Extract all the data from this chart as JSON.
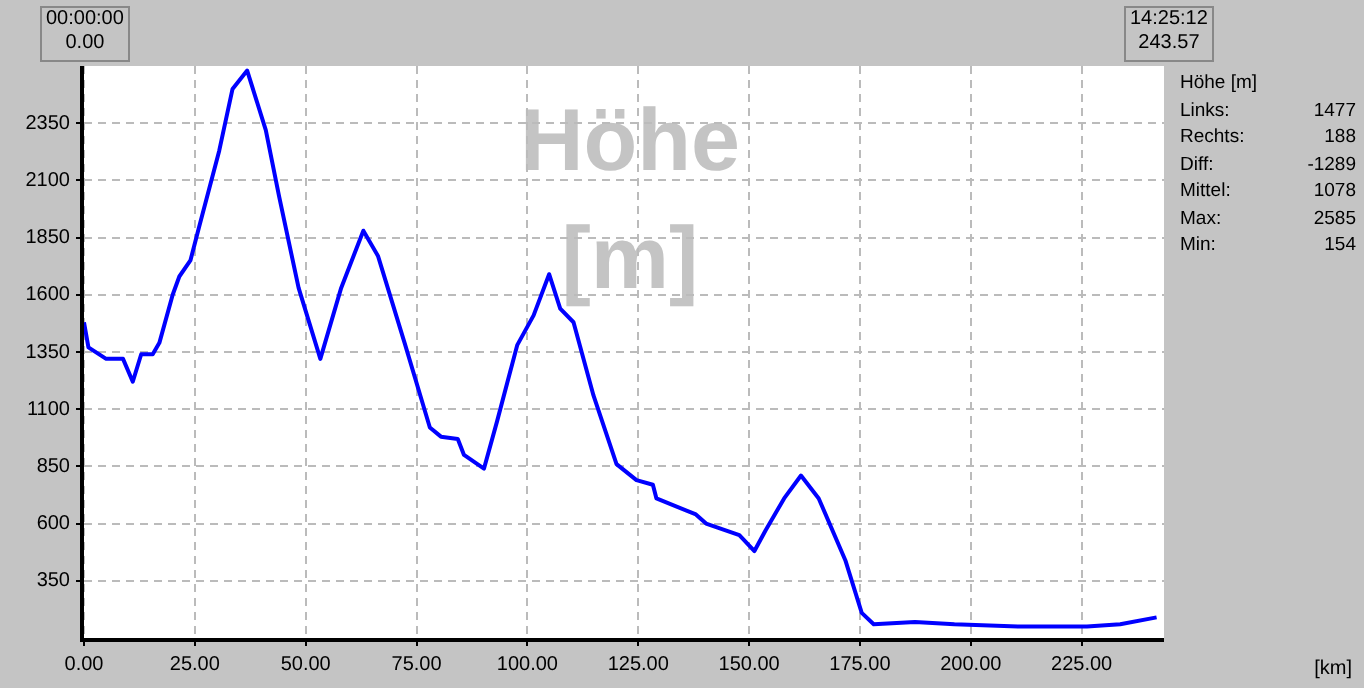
{
  "chart_data": {
    "type": "line",
    "title": "Höhe [m]",
    "annotations": [
      "00:00:00\n0.00",
      "14:25:12\n243.57",
      "[km]",
      "Höhe [m]",
      "Links:\t1477",
      "Rechts:\t188",
      "Diff:\t-1289",
      "Mittel:\t1078",
      "Max:\t2585",
      "Min:\t154"
    ],
    "x": [
      0,
      1,
      5,
      8.8,
      11,
      12.9,
      15.5,
      17,
      20,
      21.5,
      24,
      26,
      30.5,
      33.5,
      36.8,
      41,
      44,
      48.4,
      53.3,
      58,
      63,
      66.3,
      72.3,
      78,
      80.5,
      84.3,
      85.7,
      90.2,
      93.2,
      97.7,
      101.4,
      104.9,
      107.4,
      110.4,
      114.9,
      120.1,
      124.6,
      128.3,
      129.1,
      138,
      140.3,
      147.8,
      151.2,
      153.7,
      157.9,
      161.7,
      165.7,
      171.7,
      175.4,
      178.1,
      187.4,
      196.3,
      211.3,
      226.2,
      233.7,
      241.9
    ],
    "series": [
      {
        "color": "#0000ff",
        "values": [
          1480,
          1370,
          1320,
          1320,
          1220,
          1340,
          1340,
          1390,
          1600,
          1680,
          1750,
          1900,
          2230,
          2500,
          2580,
          2320,
          2030,
          1630,
          1320,
          1630,
          1880,
          1770,
          1390,
          1020,
          980,
          970,
          900,
          840,
          1050,
          1380,
          1510,
          1690,
          1540,
          1480,
          1160,
          860,
          790,
          770,
          710,
          640,
          600,
          550,
          480,
          570,
          710,
          810,
          710,
          440,
          210,
          160,
          170,
          160,
          150,
          150,
          160,
          190
        ]
      }
    ],
    "xlim": [
      0,
      243.57
    ],
    "ylim": [
      100,
      2600
    ],
    "xticks": [
      {
        "value": 0,
        "label": "0.00"
      },
      {
        "value": 25,
        "label": "25.00"
      },
      {
        "value": 50,
        "label": "50.00"
      },
      {
        "value": 75,
        "label": "75.00"
      },
      {
        "value": 100,
        "label": "100.00"
      },
      {
        "value": 125,
        "label": "125.00"
      },
      {
        "value": 150,
        "label": "150.00"
      },
      {
        "value": 175,
        "label": "175.00"
      },
      {
        "value": 200,
        "label": "200.00"
      },
      {
        "value": 225,
        "label": "225.00"
      }
    ],
    "yticks": [
      350,
      600,
      850,
      1100,
      1350,
      1600,
      1850,
      2100,
      2350
    ],
    "grid": true,
    "legend": false,
    "marker": "none",
    "line_style": "solid"
  }
}
